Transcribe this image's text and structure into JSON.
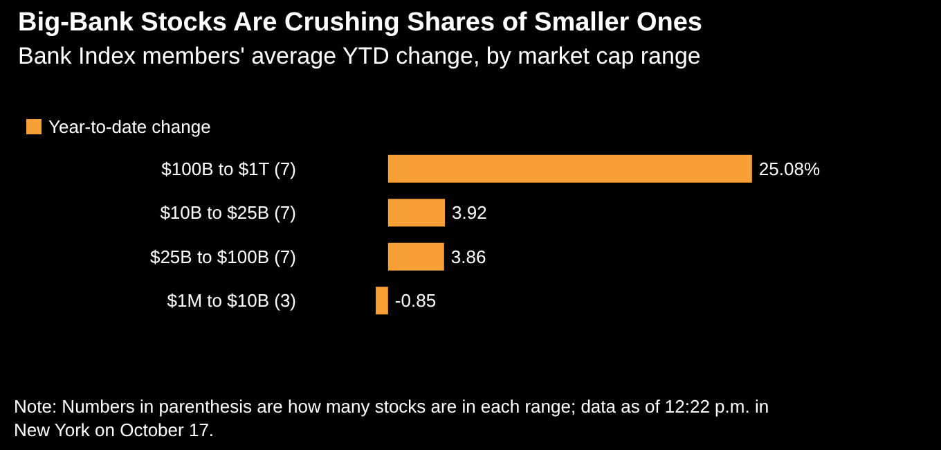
{
  "chart_data": {
    "type": "bar",
    "orientation": "horizontal",
    "title": "Big-Bank Stocks Are Crushing Shares of Smaller Ones",
    "subtitle": "Bank Index members' average YTD change, by market cap range",
    "categories": [
      "$100B to $1T (7)",
      "$10B to $25B (7)",
      "$25B to $100B (7)",
      "$1M to $10B (3)"
    ],
    "series": [
      {
        "name": "Year-to-date change",
        "color": "#f7a035",
        "values": [
          25.08,
          3.92,
          3.86,
          -0.85
        ],
        "value_labels": [
          "25.08%",
          "3.92",
          "3.86",
          "-0.85"
        ]
      }
    ],
    "legend": "top left",
    "annotations": [
      "Note: Numbers in parenthesis are how many stocks are in each range; data as of 12:22 p.m. in New York on October 17."
    ]
  }
}
